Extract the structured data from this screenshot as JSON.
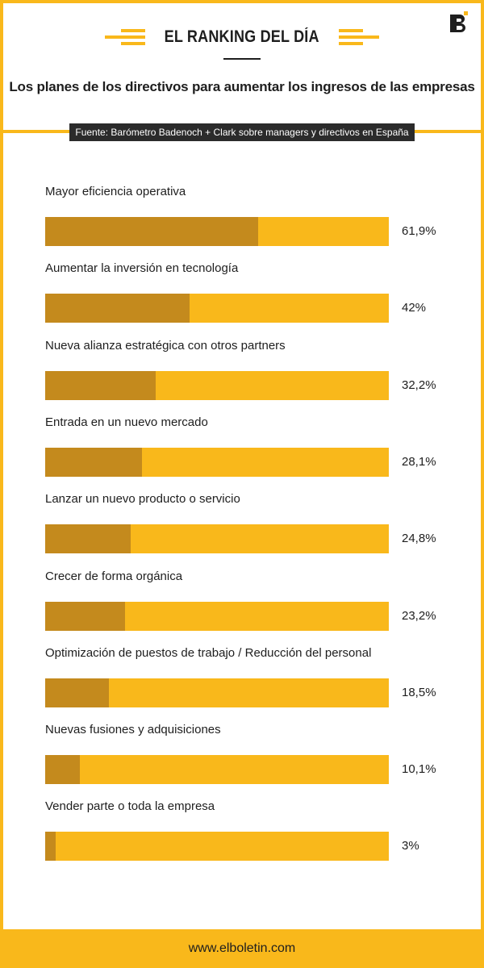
{
  "header": {
    "kicker": "EL RANKING DEL DÍA",
    "title": "Los planes de los directivos para aumentar los ingresos de las empresas",
    "source": "Fuente: Barómetro Badenoch + Clark sobre managers y directivos en España"
  },
  "footer": {
    "url": "www.elboletin.com"
  },
  "colors": {
    "accent": "#f9b81b",
    "bar_fill": "#c48a1d",
    "dark": "#1e1e1e"
  },
  "chart_data": {
    "type": "bar",
    "orientation": "horizontal",
    "categories": [
      "Mayor eficiencia operativa",
      "Aumentar la inversión en tecnología",
      "Nueva alianza estratégica con otros partners",
      "Entrada en un nuevo mercado",
      "Lanzar un nuevo producto o servicio",
      "Crecer de forma orgánica",
      "Optimización de puestos de trabajo / Reducción del personal",
      "Nuevas fusiones y adquisiciones",
      "Vender parte o toda la empresa"
    ],
    "values": [
      61.9,
      42,
      32.2,
      28.1,
      24.8,
      23.2,
      18.5,
      10.1,
      3
    ],
    "value_labels": [
      "61,9%",
      "42%",
      "32,2%",
      "28,1%",
      "24,8%",
      "23,2%",
      "18,5%",
      "10,1%",
      "3%"
    ],
    "xlim": [
      0,
      100
    ],
    "grid": false,
    "legend": false
  }
}
